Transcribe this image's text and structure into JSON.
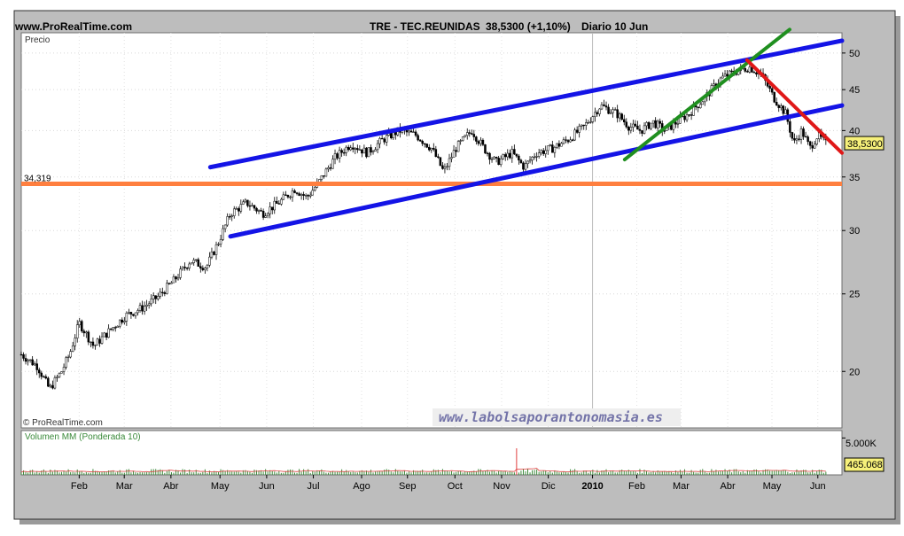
{
  "header": {
    "site": "www.ProRealTime.com",
    "instrument": "TRE - TEC.REUNIDAS",
    "price_change": "38,5300 (+1,10%)",
    "period": "Diario 10 Jun"
  },
  "panel_price": {
    "label": "Precio",
    "copyright": "© ProRealTime.com",
    "watermark": "www.labolsaporantonomasia.es",
    "support_label": "34,319",
    "last_price_label": "38,5300"
  },
  "panel_volume": {
    "label": "Volumen MM (Ponderada 10)",
    "axis_label": "5.000K",
    "last_value_label": "465.068"
  },
  "colors": {
    "channel": "#1414e6",
    "support": "#ff7f3f",
    "uptrend": "#1f8f1f",
    "downtrend": "#e01818",
    "candle_up": "#ffffff",
    "candle_down": "#000000",
    "volume_bar": "#3a8a3a",
    "volume_avg": "#e04040"
  },
  "chart_data": {
    "type": "candlestick",
    "y_scale": "log",
    "ylim": [
      17,
      53
    ],
    "y_ticks": [
      20,
      25,
      30,
      35,
      40,
      45,
      50
    ],
    "x_ticks": [
      {
        "label": "Feb",
        "t": 0.072
      },
      {
        "label": "Mar",
        "t": 0.128
      },
      {
        "label": "Abr",
        "t": 0.186
      },
      {
        "label": "May",
        "t": 0.247
      },
      {
        "label": "Jun",
        "t": 0.305
      },
      {
        "label": "Jul",
        "t": 0.363
      },
      {
        "label": "Ago",
        "t": 0.423
      },
      {
        "label": "Sep",
        "t": 0.48
      },
      {
        "label": "Oct",
        "t": 0.539
      },
      {
        "label": "Nov",
        "t": 0.597
      },
      {
        "label": "Dic",
        "t": 0.655
      },
      {
        "label": "2010",
        "t": 0.71,
        "bold": true
      },
      {
        "label": "Feb",
        "t": 0.765
      },
      {
        "label": "Mar",
        "t": 0.82
      },
      {
        "label": "Abr",
        "t": 0.878
      },
      {
        "label": "May",
        "t": 0.933
      },
      {
        "label": "Jun",
        "t": 0.99
      }
    ],
    "close_path": [
      [
        0.0,
        21.0
      ],
      [
        0.02,
        20.3
      ],
      [
        0.035,
        19.0
      ],
      [
        0.05,
        20.0
      ],
      [
        0.06,
        21.0
      ],
      [
        0.072,
        23.0
      ],
      [
        0.09,
        21.5
      ],
      [
        0.11,
        22.5
      ],
      [
        0.13,
        23.5
      ],
      [
        0.15,
        24.0
      ],
      [
        0.17,
        24.8
      ],
      [
        0.19,
        26.0
      ],
      [
        0.21,
        27.5
      ],
      [
        0.23,
        27.0
      ],
      [
        0.245,
        29.0
      ],
      [
        0.26,
        31.5
      ],
      [
        0.28,
        32.5
      ],
      [
        0.3,
        31.5
      ],
      [
        0.32,
        32.5
      ],
      [
        0.34,
        33.8
      ],
      [
        0.355,
        33.0
      ],
      [
        0.37,
        34.5
      ],
      [
        0.39,
        37.0
      ],
      [
        0.41,
        38.5
      ],
      [
        0.43,
        37.5
      ],
      [
        0.45,
        39.0
      ],
      [
        0.47,
        40.0
      ],
      [
        0.49,
        39.5
      ],
      [
        0.51,
        38.0
      ],
      [
        0.525,
        35.5
      ],
      [
        0.54,
        38.0
      ],
      [
        0.56,
        40.0
      ],
      [
        0.575,
        38.0
      ],
      [
        0.59,
        36.5
      ],
      [
        0.61,
        37.5
      ],
      [
        0.625,
        36.0
      ],
      [
        0.64,
        37.5
      ],
      [
        0.66,
        38.0
      ],
      [
        0.68,
        39.0
      ],
      [
        0.7,
        40.5
      ],
      [
        0.72,
        43.0
      ],
      [
        0.74,
        42.0
      ],
      [
        0.755,
        40.5
      ],
      [
        0.77,
        40.0
      ],
      [
        0.785,
        41.0
      ],
      [
        0.8,
        40.0
      ],
      [
        0.815,
        41.0
      ],
      [
        0.83,
        42.0
      ],
      [
        0.85,
        44.0
      ],
      [
        0.87,
        46.5
      ],
      [
        0.89,
        47.5
      ],
      [
        0.905,
        48.0
      ],
      [
        0.92,
        47.0
      ],
      [
        0.935,
        44.0
      ],
      [
        0.95,
        42.0
      ],
      [
        0.96,
        38.5
      ],
      [
        0.97,
        40.0
      ],
      [
        0.98,
        38.0
      ],
      [
        0.99,
        39.5
      ],
      [
        1.0,
        38.53
      ]
    ],
    "channel_upper": {
      "t": [
        0.235,
        1.02
      ],
      "y": [
        36.0,
        51.8
      ]
    },
    "channel_lower": {
      "t": [
        0.26,
        1.02
      ],
      "y": [
        29.5,
        43.0
      ]
    },
    "uptrend_line": {
      "t": [
        0.75,
        0.955
      ],
      "y": [
        36.8,
        53.5
      ]
    },
    "downtrend_line": {
      "t": [
        0.902,
        1.02
      ],
      "y": [
        49.0,
        37.5
      ]
    },
    "support_level": 34.319,
    "last_price": 38.53,
    "volume": {
      "ylim": [
        0,
        6000
      ],
      "ticks": [
        5000
      ],
      "unit": "K",
      "spike": {
        "t": 0.615,
        "value": 3600
      },
      "last_value": 465.068
    }
  }
}
